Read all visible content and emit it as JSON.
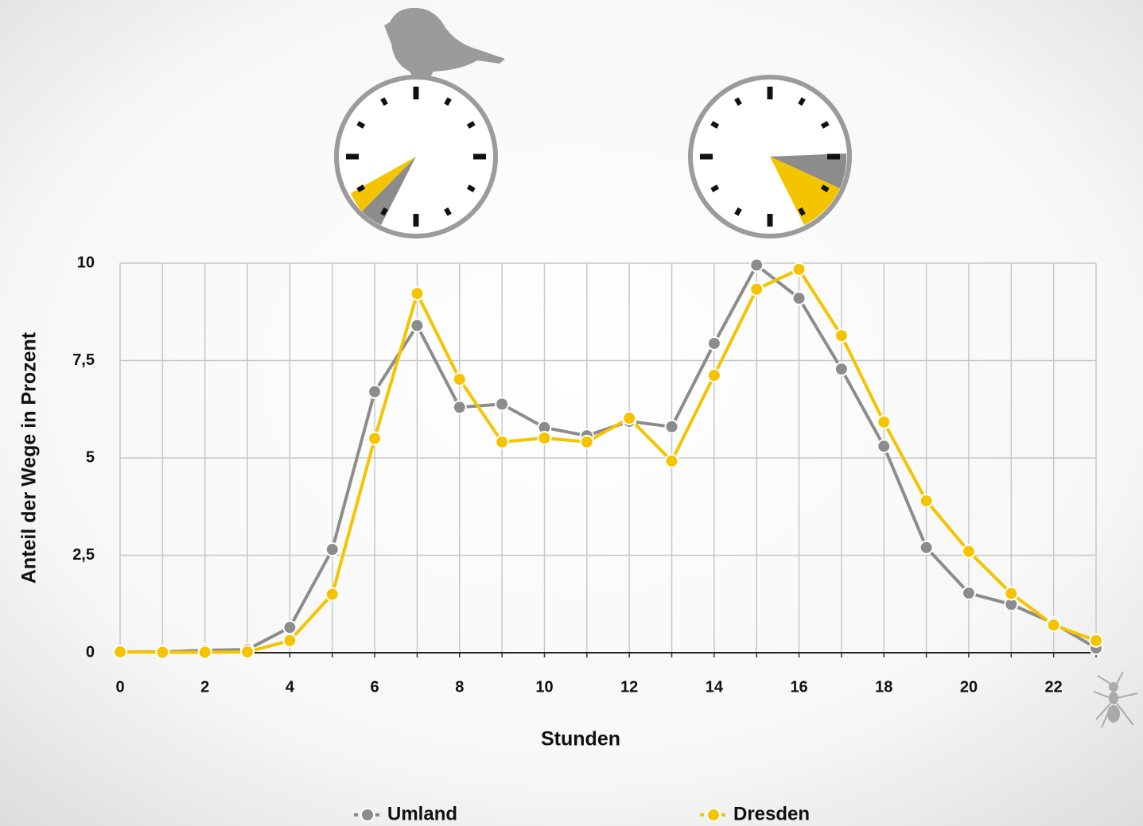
{
  "chart_data": {
    "type": "line",
    "x_label": "Stunden",
    "y_label": "Anteil der Wege in Prozent",
    "x": [
      0,
      1,
      2,
      3,
      4,
      5,
      6,
      7,
      8,
      9,
      10,
      11,
      12,
      13,
      14,
      15,
      16,
      17,
      18,
      19,
      20,
      21,
      22,
      23
    ],
    "series": [
      {
        "name": "Umland",
        "color": "#8c8c8c",
        "values": [
          0.02,
          0.02,
          0.06,
          0.08,
          0.65,
          2.65,
          6.7,
          8.4,
          6.3,
          6.38,
          5.78,
          5.57,
          5.94,
          5.8,
          7.94,
          9.95,
          9.1,
          7.28,
          5.3,
          2.7,
          1.53,
          1.24,
          0.76,
          0.12
        ]
      },
      {
        "name": "Dresden",
        "color": "#f5c400",
        "values": [
          0.02,
          0.01,
          0.01,
          0.02,
          0.31,
          1.5,
          5.5,
          9.22,
          7.02,
          5.41,
          5.51,
          5.41,
          6.02,
          4.92,
          7.12,
          9.33,
          9.84,
          8.14,
          5.92,
          3.9,
          2.6,
          1.52,
          0.71,
          0.31
        ]
      }
    ],
    "xlim": [
      0,
      23
    ],
    "xticks": [
      0,
      2,
      4,
      6,
      8,
      10,
      12,
      14,
      16,
      18,
      20,
      22
    ],
    "ylim": [
      0,
      10
    ],
    "yticks": [
      0,
      {
        "value": 2.5,
        "label": "2,5"
      },
      5,
      {
        "value": 7.5,
        "label": "7,5"
      },
      10
    ],
    "grid": true,
    "legend": "bottom"
  }
}
